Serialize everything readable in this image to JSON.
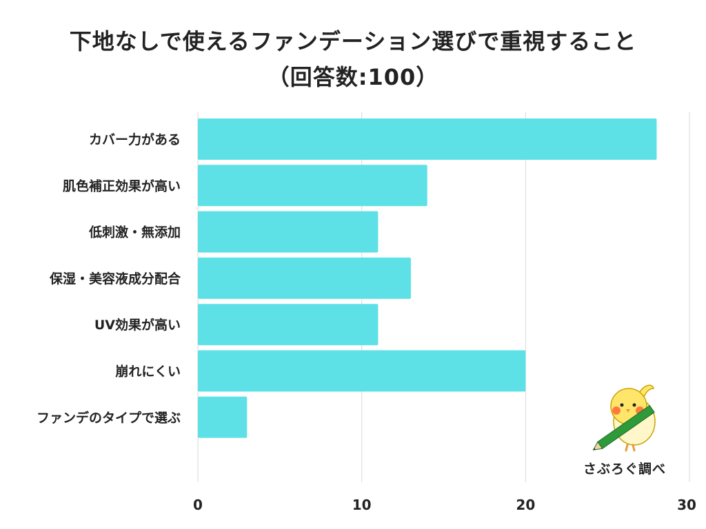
{
  "chart_data": {
    "type": "bar",
    "orientation": "horizontal",
    "title": "下地なしで使えるファンデーション選びで重視すること",
    "subtitle": "（回答数:100）",
    "categories": [
      "カバー力がある",
      "肌色補正効果が高い",
      "低刺激・無添加",
      "保湿・美容液成分配合",
      "UV効果が高い",
      "崩れにくい",
      "ファンデのタイプで選ぶ"
    ],
    "values": [
      28,
      14,
      11,
      13,
      11,
      20,
      3
    ],
    "xlim": [
      0,
      30
    ],
    "xticks": [
      0,
      10,
      20,
      30
    ],
    "xlabel": "",
    "ylabel": "",
    "grid": true,
    "bar_color": "#5ee1e6"
  },
  "brand": {
    "label": "さぶろぐ調べ"
  },
  "colors": {
    "bar": "#5ee1e6",
    "grid": "#d9d9d9",
    "text": "#222222",
    "mascot_body": "#ffe66b",
    "mascot_cheek": "#ff7a3d",
    "pencil": "#2f9a3a"
  }
}
